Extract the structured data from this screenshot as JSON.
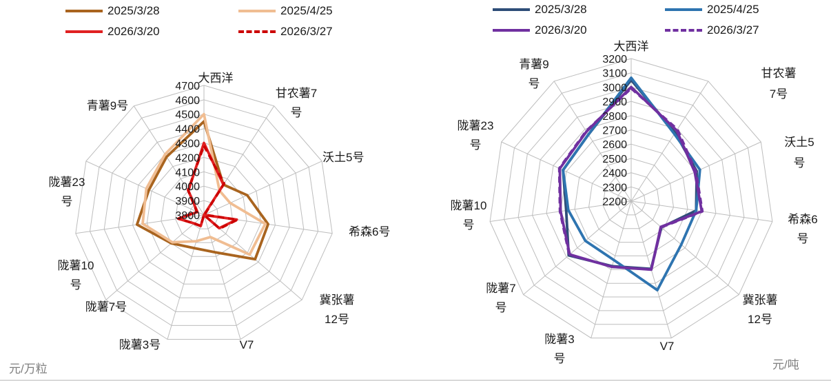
{
  "charts": [
    {
      "unit_label": "元/万粒",
      "axis": {
        "min": 3800,
        "max": 4700,
        "step": 100
      },
      "ticks": [
        3800,
        3900,
        4000,
        4100,
        4200,
        4300,
        4400,
        4500,
        4600,
        4700
      ],
      "categories": [
        "大西洋",
        "甘农薯7号",
        "沃土5号",
        "希森6号",
        "冀张薯12号",
        "V7",
        "陇薯3号",
        "陇薯7号",
        "陇薯10号",
        "陇薯23号",
        "青薯9号"
      ],
      "category_lines": [
        [
          "大西洋"
        ],
        [
          "甘农薯7",
          "号"
        ],
        [
          "沃土5号"
        ],
        [
          "希森6号"
        ],
        [
          "冀张薯",
          "12号"
        ],
        [
          "V7"
        ],
        [
          "陇薯3号"
        ],
        [
          "陇薯7号"
        ],
        [
          "陇薯10",
          "号"
        ],
        [
          "陇薯23",
          "号"
        ],
        [
          "青薯9号"
        ]
      ],
      "series": [
        {
          "name": "2025/3/28",
          "color": "#A9641F",
          "dash": false,
          "values": [
            4450,
            4050,
            4130,
            4250,
            4270,
            4070,
            4040,
            4100,
            4270,
            4220,
            4280
          ]
        },
        {
          "name": "2025/4/25",
          "color": "#F0BD92",
          "dash": false,
          "values": [
            4500,
            4000,
            4000,
            4230,
            4220,
            3960,
            3990,
            4090,
            4230,
            4240,
            4300
          ]
        },
        {
          "name": "2026/3/20",
          "color": "#E02021",
          "dash": false,
          "values": [
            4300,
            4050,
            3800,
            4030,
            3940,
            3800,
            3880,
            3890,
            3980,
            3850,
            4000
          ]
        },
        {
          "name": "2026/3/27",
          "color": "#CC0000",
          "dash": true,
          "values": [
            4280,
            4060,
            3805,
            4035,
            3945,
            3800,
            3880,
            3890,
            3980,
            3855,
            4005
          ]
        }
      ]
    },
    {
      "unit_label": "元/吨",
      "axis": {
        "min": 2200,
        "max": 3200,
        "step": 100
      },
      "ticks": [
        2200,
        2300,
        2400,
        2500,
        2600,
        2700,
        2800,
        2900,
        3000,
        3100,
        3200
      ],
      "categories": [
        "大西洋",
        "甘农薯7号",
        "沃土5号",
        "希森6号",
        "冀张薯12号",
        "V7",
        "陇薯3号",
        "陇薯7号",
        "陇薯10号",
        "陇薯23号",
        "青薯9号"
      ],
      "category_lines": [
        [
          "大西洋"
        ],
        [
          "甘农薯",
          "7号"
        ],
        [
          "沃土5",
          "号"
        ],
        [
          "希森6",
          "号"
        ],
        [
          "冀张薯",
          "12号"
        ],
        [
          "V7"
        ],
        [
          "陇薯3",
          "号"
        ],
        [
          "陇薯7",
          "号"
        ],
        [
          "陇薯10",
          "号"
        ],
        [
          "陇薯23",
          "号"
        ],
        [
          "青薯9",
          "号"
        ]
      ],
      "series": [
        {
          "name": "2025/3/28",
          "color": "#2E4D78",
          "dash": false,
          "values": [
            3050,
            2770,
            2705,
            2660,
            2480,
            2695,
            2675,
            2780,
            2660,
            2725,
            2755
          ]
        },
        {
          "name": "2025/4/25",
          "color": "#2E74B0",
          "dash": false,
          "values": [
            3065,
            2760,
            2730,
            2660,
            2665,
            2850,
            2630,
            2625,
            2645,
            2725,
            2755
          ]
        },
        {
          "name": "2026/3/20",
          "color": "#7030A0",
          "dash": false,
          "values": [
            3000,
            2790,
            2690,
            2700,
            2475,
            2700,
            2680,
            2770,
            2700,
            2750,
            2780
          ]
        },
        {
          "name": "2026/3/27",
          "color": "#7030A0",
          "dash": true,
          "values": [
            2990,
            2800,
            2700,
            2705,
            2480,
            2700,
            2680,
            2775,
            2705,
            2755,
            2785
          ]
        }
      ]
    }
  ],
  "chart_data": [
    {
      "type": "radar",
      "title": "",
      "unit": "元/万粒",
      "axis_range": [
        3800,
        4700
      ],
      "axis_step": 100,
      "grid": true,
      "legend_position": "top",
      "categories": [
        "大西洋",
        "甘农薯7号",
        "沃土5号",
        "希森6号",
        "冀张薯12号",
        "V7",
        "陇薯3号",
        "陇薯7号",
        "陇薯10号",
        "陇薯23号",
        "青薯9号"
      ],
      "series": [
        {
          "name": "2025/3/28",
          "values": [
            4450,
            4050,
            4130,
            4250,
            4270,
            4070,
            4040,
            4100,
            4270,
            4220,
            4280
          ]
        },
        {
          "name": "2025/4/25",
          "values": [
            4500,
            4000,
            4000,
            4230,
            4220,
            3960,
            3990,
            4090,
            4230,
            4240,
            4300
          ]
        },
        {
          "name": "2026/3/20",
          "values": [
            4300,
            4050,
            3800,
            4030,
            3940,
            3800,
            3880,
            3890,
            3980,
            3850,
            4000
          ]
        },
        {
          "name": "2026/3/27",
          "values": [
            4280,
            4060,
            3805,
            4035,
            3945,
            3800,
            3880,
            3890,
            3980,
            3855,
            4005
          ]
        }
      ]
    },
    {
      "type": "radar",
      "title": "",
      "unit": "元/吨",
      "axis_range": [
        2200,
        3200
      ],
      "axis_step": 100,
      "grid": true,
      "legend_position": "top",
      "categories": [
        "大西洋",
        "甘农薯7号",
        "沃土5号",
        "希森6号",
        "冀张薯12号",
        "V7",
        "陇薯3号",
        "陇薯7号",
        "陇薯10号",
        "陇薯23号",
        "青薯9号"
      ],
      "series": [
        {
          "name": "2025/3/28",
          "values": [
            3050,
            2770,
            2705,
            2660,
            2480,
            2695,
            2675,
            2780,
            2660,
            2725,
            2755
          ]
        },
        {
          "name": "2025/4/25",
          "values": [
            3065,
            2760,
            2730,
            2660,
            2665,
            2850,
            2630,
            2625,
            2645,
            2725,
            2755
          ]
        },
        {
          "name": "2026/3/20",
          "values": [
            3000,
            2790,
            2690,
            2700,
            2475,
            2700,
            2680,
            2770,
            2700,
            2750,
            2780
          ]
        },
        {
          "name": "2026/3/27",
          "values": [
            2990,
            2800,
            2700,
            2705,
            2480,
            2700,
            2680,
            2775,
            2705,
            2755,
            2785
          ]
        }
      ]
    }
  ]
}
